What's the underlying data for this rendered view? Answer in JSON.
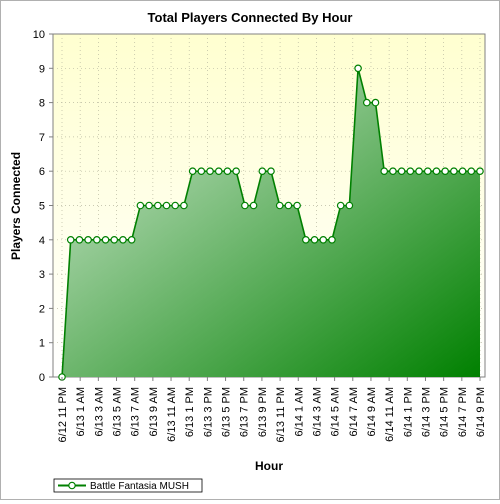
{
  "chart_data": {
    "type": "area",
    "title": "Total Players Connected By Hour",
    "xlabel": "Hour",
    "ylabel": "Players Connected",
    "ylim": [
      0,
      10
    ],
    "yticks": [
      0,
      1,
      2,
      3,
      4,
      5,
      6,
      7,
      8,
      9,
      10
    ],
    "grid": true,
    "legend_position": "bottom-left",
    "x_tick_labels": [
      "6/12 11 PM",
      "6/13 1 AM",
      "6/13 3 AM",
      "6/13 5 AM",
      "6/13 7 AM",
      "6/13 9 AM",
      "6/13 11 AM",
      "6/13 1 PM",
      "6/13 3 PM",
      "6/13 5 PM",
      "6/13 7 PM",
      "6/13 9 PM",
      "6/13 11 PM",
      "6/14 1 AM",
      "6/14 3 AM",
      "6/14 5 AM",
      "6/14 7 AM",
      "6/14 9 AM",
      "6/14 11 AM",
      "6/14 1 PM",
      "6/14 3 PM",
      "6/14 5 PM",
      "6/14 7 PM",
      "6/14 9 PM"
    ],
    "series": [
      {
        "name": "Battle Fantasia MUSH",
        "color": "#008000",
        "values": [
          0,
          4,
          4,
          4,
          4,
          4,
          4,
          4,
          4,
          5,
          5,
          5,
          5,
          5,
          5,
          6,
          6,
          6,
          6,
          6,
          6,
          5,
          5,
          6,
          6,
          5,
          5,
          5,
          4,
          4,
          4,
          4,
          5,
          5,
          9,
          8,
          8,
          6,
          6,
          6,
          6,
          6,
          6,
          6,
          6,
          6,
          6,
          6,
          6
        ]
      }
    ]
  },
  "colors": {
    "plot_background_top": "#ffffd0",
    "plot_background_bottom": "#ffffff",
    "line": "#008000",
    "fill_light": "#d9ecd9",
    "fill_dark": "#008000"
  }
}
